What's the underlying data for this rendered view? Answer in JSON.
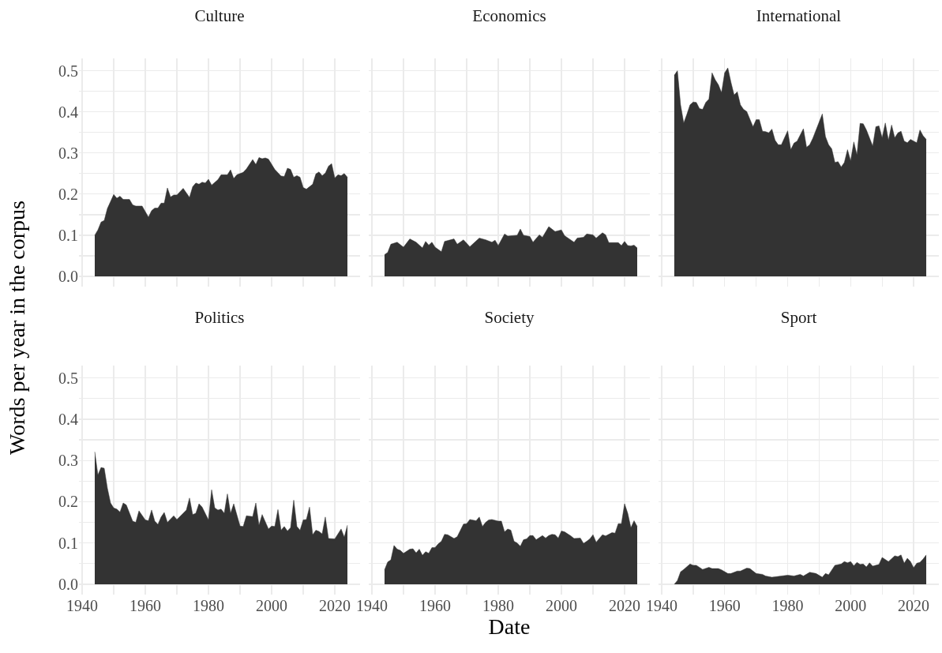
{
  "chart_data": [
    {
      "type": "area",
      "title": "Culture",
      "color": "#333333",
      "tick_labels": "y",
      "grid": true,
      "xlim": [
        1939,
        2028
      ],
      "ylim": [
        -0.025,
        0.53
      ],
      "xticks": [
        {
          "value": 1940,
          "label": null
        },
        {
          "value": 1950,
          "label": null
        },
        {
          "value": 1960,
          "label": null
        },
        {
          "value": 1970,
          "label": null
        },
        {
          "value": 1980,
          "label": null
        },
        {
          "value": 1990,
          "label": null
        },
        {
          "value": 2000,
          "label": null
        },
        {
          "value": 2010,
          "label": null
        },
        {
          "value": 2020,
          "label": null
        }
      ],
      "yticks": [
        {
          "value": 0,
          "label": "0.0"
        },
        {
          "value": 0.05,
          "label": null
        },
        0.1,
        {
          "value": 0.15,
          "label": null
        },
        0.2,
        {
          "value": 0.25,
          "label": null
        },
        0.3,
        {
          "value": 0.35,
          "label": null
        },
        0.4,
        {
          "value": 0.45,
          "label": null
        },
        0.5
      ],
      "x": [
        1944,
        1945,
        1946,
        1947,
        1948,
        1950,
        1951,
        1952,
        1953,
        1955,
        1956,
        1957,
        1959,
        1961,
        1962,
        1963,
        1964,
        1965,
        1966,
        1967,
        1968,
        1969,
        1970,
        1972,
        1974,
        1975,
        1976,
        1977,
        1978,
        1979,
        1980,
        1981,
        1983,
        1984,
        1986,
        1987,
        1988,
        1989,
        1991,
        1992,
        1994,
        1995,
        1996,
        1997,
        1998,
        1999,
        2001,
        2003,
        2004,
        2005,
        2006,
        2007,
        2008,
        2009,
        2010,
        2011,
        2013,
        2014,
        2015,
        2016,
        2017,
        2018,
        2019,
        2020,
        2021,
        2022,
        2023,
        2024
      ],
      "values": [
        0.1,
        0.113,
        0.132,
        0.136,
        0.165,
        0.199,
        0.19,
        0.195,
        0.187,
        0.187,
        0.174,
        0.171,
        0.171,
        0.144,
        0.16,
        0.166,
        0.166,
        0.178,
        0.178,
        0.215,
        0.193,
        0.198,
        0.198,
        0.214,
        0.192,
        0.218,
        0.227,
        0.224,
        0.229,
        0.227,
        0.236,
        0.222,
        0.235,
        0.247,
        0.247,
        0.259,
        0.238,
        0.247,
        0.253,
        0.261,
        0.284,
        0.272,
        0.289,
        0.286,
        0.288,
        0.285,
        0.26,
        0.244,
        0.243,
        0.263,
        0.26,
        0.241,
        0.245,
        0.241,
        0.216,
        0.212,
        0.224,
        0.249,
        0.254,
        0.245,
        0.251,
        0.268,
        0.274,
        0.239,
        0.247,
        0.245,
        0.25,
        0.241
      ]
    },
    {
      "type": "area",
      "title": "Economics",
      "color": "#333333",
      "tick_labels": false,
      "grid": true,
      "xlim": [
        1939,
        2028
      ],
      "ylim": [
        -0.025,
        0.53
      ],
      "xticks": [
        {
          "value": 1940,
          "label": null
        },
        {
          "value": 1950,
          "label": null
        },
        {
          "value": 1960,
          "label": null
        },
        {
          "value": 1970,
          "label": null
        },
        {
          "value": 1980,
          "label": null
        },
        {
          "value": 1990,
          "label": null
        },
        {
          "value": 2000,
          "label": null
        },
        {
          "value": 2010,
          "label": null
        },
        {
          "value": 2020,
          "label": null
        }
      ],
      "yticks": [
        {
          "value": 0,
          "label": null
        },
        {
          "value": 0.05,
          "label": null
        },
        {
          "value": 0.1,
          "label": null
        },
        {
          "value": 0.15,
          "label": null
        },
        {
          "value": 0.2,
          "label": null
        },
        {
          "value": 0.25,
          "label": null
        },
        {
          "value": 0.3,
          "label": null
        },
        {
          "value": 0.35,
          "label": null
        },
        {
          "value": 0.4,
          "label": null
        },
        {
          "value": 0.45,
          "label": null
        },
        {
          "value": 0.5,
          "label": null
        }
      ],
      "x": [
        1944,
        1945,
        1946,
        1948,
        1950,
        1952,
        1954,
        1956,
        1957,
        1958,
        1959,
        1960,
        1962,
        1963,
        1966,
        1967,
        1969,
        1971,
        1972,
        1974,
        1976,
        1978,
        1979,
        1980,
        1982,
        1983,
        1986,
        1987,
        1988,
        1990,
        1991,
        1993,
        1994,
        1996,
        1998,
        2000,
        2001,
        2004,
        2005,
        2007,
        2008,
        2010,
        2011,
        2013,
        2014,
        2015,
        2017,
        2018,
        2019,
        2020,
        2021,
        2022,
        2023,
        2024
      ],
      "values": [
        0.053,
        0.058,
        0.078,
        0.083,
        0.071,
        0.091,
        0.083,
        0.069,
        0.085,
        0.076,
        0.083,
        0.071,
        0.06,
        0.085,
        0.091,
        0.078,
        0.089,
        0.072,
        0.079,
        0.093,
        0.089,
        0.083,
        0.088,
        0.075,
        0.103,
        0.098,
        0.1,
        0.115,
        0.1,
        0.097,
        0.083,
        0.101,
        0.095,
        0.121,
        0.109,
        0.113,
        0.099,
        0.083,
        0.093,
        0.095,
        0.103,
        0.101,
        0.093,
        0.106,
        0.101,
        0.082,
        0.082,
        0.082,
        0.075,
        0.085,
        0.075,
        0.074,
        0.076,
        0.069
      ]
    },
    {
      "type": "area",
      "title": "International",
      "color": "#333333",
      "tick_labels": false,
      "grid": true,
      "xlim": [
        1939,
        2028
      ],
      "ylim": [
        -0.025,
        0.53
      ],
      "xticks": [
        {
          "value": 1940,
          "label": null
        },
        {
          "value": 1950,
          "label": null
        },
        {
          "value": 1960,
          "label": null
        },
        {
          "value": 1970,
          "label": null
        },
        {
          "value": 1980,
          "label": null
        },
        {
          "value": 1990,
          "label": null
        },
        {
          "value": 2000,
          "label": null
        },
        {
          "value": 2010,
          "label": null
        },
        {
          "value": 2020,
          "label": null
        }
      ],
      "yticks": [
        {
          "value": 0,
          "label": null
        },
        {
          "value": 0.05,
          "label": null
        },
        {
          "value": 0.1,
          "label": null
        },
        {
          "value": 0.15,
          "label": null
        },
        {
          "value": 0.2,
          "label": null
        },
        {
          "value": 0.25,
          "label": null
        },
        {
          "value": 0.3,
          "label": null
        },
        {
          "value": 0.35,
          "label": null
        },
        {
          "value": 0.4,
          "label": null
        },
        {
          "value": 0.45,
          "label": null
        },
        {
          "value": 0.5,
          "label": null
        }
      ],
      "x": [
        1944,
        1945,
        1946,
        1947,
        1948,
        1949,
        1950,
        1951,
        1952,
        1953,
        1954,
        1955,
        1956,
        1957,
        1958,
        1959,
        1960,
        1961,
        1962,
        1963,
        1964,
        1965,
        1966,
        1967,
        1969,
        1970,
        1971,
        1972,
        1973,
        1974,
        1975,
        1976,
        1977,
        1978,
        1980,
        1981,
        1982,
        1983,
        1985,
        1986,
        1987,
        1988,
        1991,
        1992,
        1993,
        1994,
        1995,
        1996,
        1997,
        1998,
        1999,
        2000,
        2001,
        2002,
        2003,
        2004,
        2005,
        2007,
        2008,
        2009,
        2010,
        2011,
        2012,
        2013,
        2014,
        2015,
        2016,
        2017,
        2018,
        2019,
        2020,
        2021,
        2022,
        2023,
        2024
      ],
      "values": [
        0.489,
        0.5,
        0.417,
        0.373,
        0.394,
        0.417,
        0.424,
        0.423,
        0.408,
        0.406,
        0.423,
        0.431,
        0.495,
        0.478,
        0.466,
        0.447,
        0.495,
        0.507,
        0.472,
        0.441,
        0.449,
        0.417,
        0.406,
        0.401,
        0.364,
        0.381,
        0.381,
        0.353,
        0.352,
        0.349,
        0.358,
        0.331,
        0.32,
        0.32,
        0.354,
        0.308,
        0.324,
        0.329,
        0.359,
        0.314,
        0.32,
        0.336,
        0.395,
        0.34,
        0.32,
        0.31,
        0.277,
        0.279,
        0.266,
        0.277,
        0.308,
        0.281,
        0.327,
        0.295,
        0.372,
        0.371,
        0.356,
        0.317,
        0.364,
        0.366,
        0.337,
        0.373,
        0.331,
        0.368,
        0.337,
        0.349,
        0.353,
        0.329,
        0.325,
        0.333,
        0.329,
        0.325,
        0.356,
        0.342,
        0.333
      ]
    },
    {
      "type": "area",
      "title": "Politics",
      "ylabel": "Words per year in the corpus",
      "color": "#333333",
      "grid": true,
      "xlim": [
        1939,
        2028
      ],
      "ylim": [
        -0.025,
        0.53
      ],
      "xticks": [
        1940,
        {
          "value": 1950,
          "label": null
        },
        1960,
        {
          "value": 1970,
          "label": null
        },
        1980,
        {
          "value": 1990,
          "label": null
        },
        2000,
        {
          "value": 2010,
          "label": null
        },
        2020
      ],
      "yticks": [
        {
          "value": 0,
          "label": "0.0"
        },
        {
          "value": 0.05,
          "label": null
        },
        0.1,
        {
          "value": 0.15,
          "label": null
        },
        0.2,
        {
          "value": 0.25,
          "label": null
        },
        0.3,
        {
          "value": 0.35,
          "label": null
        },
        0.4,
        {
          "value": 0.45,
          "label": null
        },
        0.5
      ],
      "x": [
        1944,
        1945,
        1946,
        1947,
        1948,
        1949,
        1950,
        1951,
        1952,
        1953,
        1954,
        1956,
        1957,
        1958,
        1960,
        1961,
        1962,
        1963,
        1964,
        1965,
        1966,
        1967,
        1969,
        1970,
        1972,
        1973,
        1974,
        1975,
        1976,
        1977,
        1978,
        1980,
        1981,
        1982,
        1983,
        1984,
        1985,
        1986,
        1987,
        1988,
        1990,
        1991,
        1992,
        1994,
        1995,
        1996,
        1997,
        1999,
        2000,
        2001,
        2002,
        2003,
        2004,
        2005,
        2006,
        2007,
        2008,
        2009,
        2010,
        2011,
        2012,
        2013,
        2014,
        2015,
        2016,
        2017,
        2018,
        2020,
        2022,
        2023,
        2024
      ],
      "values": [
        0.321,
        0.265,
        0.283,
        0.281,
        0.233,
        0.197,
        0.185,
        0.182,
        0.175,
        0.197,
        0.192,
        0.153,
        0.15,
        0.178,
        0.156,
        0.154,
        0.18,
        0.153,
        0.145,
        0.163,
        0.174,
        0.15,
        0.166,
        0.157,
        0.172,
        0.18,
        0.209,
        0.169,
        0.172,
        0.195,
        0.187,
        0.156,
        0.229,
        0.185,
        0.18,
        0.182,
        0.172,
        0.219,
        0.172,
        0.195,
        0.141,
        0.14,
        0.166,
        0.164,
        0.197,
        0.143,
        0.169,
        0.134,
        0.141,
        0.14,
        0.181,
        0.131,
        0.14,
        0.129,
        0.137,
        0.204,
        0.14,
        0.131,
        0.156,
        0.157,
        0.187,
        0.12,
        0.131,
        0.128,
        0.122,
        0.163,
        0.111,
        0.11,
        0.134,
        0.114,
        0.143
      ]
    },
    {
      "type": "area",
      "title": "Society",
      "xlabel": "Date",
      "color": "#333333",
      "tick_labels": "x",
      "grid": true,
      "xlim": [
        1939,
        2028
      ],
      "ylim": [
        -0.025,
        0.53
      ],
      "xticks": [
        1940,
        {
          "value": 1950,
          "label": null
        },
        1960,
        {
          "value": 1970,
          "label": null
        },
        1980,
        {
          "value": 1990,
          "label": null
        },
        2000,
        {
          "value": 2010,
          "label": null
        },
        2020
      ],
      "yticks": [
        {
          "value": 0,
          "label": null
        },
        {
          "value": 0.05,
          "label": null
        },
        {
          "value": 0.1,
          "label": null
        },
        {
          "value": 0.15,
          "label": null
        },
        {
          "value": 0.2,
          "label": null
        },
        {
          "value": 0.25,
          "label": null
        },
        {
          "value": 0.3,
          "label": null
        },
        {
          "value": 0.35,
          "label": null
        },
        {
          "value": 0.4,
          "label": null
        },
        {
          "value": 0.45,
          "label": null
        },
        {
          "value": 0.5,
          "label": null
        }
      ],
      "x": [
        1944,
        1945,
        1946,
        1947,
        1948,
        1949,
        1950,
        1952,
        1953,
        1954,
        1955,
        1956,
        1957,
        1958,
        1959,
        1960,
        1961,
        1962,
        1963,
        1964,
        1966,
        1967,
        1969,
        1970,
        1971,
        1973,
        1974,
        1975,
        1976,
        1977,
        1978,
        1980,
        1981,
        1982,
        1983,
        1984,
        1985,
        1986,
        1987,
        1988,
        1989,
        1990,
        1991,
        1992,
        1994,
        1995,
        1996,
        1997,
        1998,
        1999,
        2000,
        2001,
        2003,
        2004,
        2006,
        2007,
        2008,
        2009,
        2010,
        2011,
        2012,
        2013,
        2014,
        2016,
        2017,
        2018,
        2019,
        2020,
        2021,
        2022,
        2023,
        2024
      ],
      "values": [
        0.035,
        0.054,
        0.059,
        0.094,
        0.085,
        0.082,
        0.075,
        0.085,
        0.086,
        0.076,
        0.085,
        0.07,
        0.079,
        0.075,
        0.089,
        0.089,
        0.098,
        0.104,
        0.121,
        0.12,
        0.111,
        0.115,
        0.146,
        0.147,
        0.157,
        0.154,
        0.163,
        0.14,
        0.15,
        0.156,
        0.157,
        0.153,
        0.153,
        0.127,
        0.134,
        0.131,
        0.104,
        0.1,
        0.092,
        0.108,
        0.11,
        0.118,
        0.118,
        0.108,
        0.118,
        0.112,
        0.118,
        0.121,
        0.12,
        0.112,
        0.129,
        0.127,
        0.117,
        0.111,
        0.112,
        0.099,
        0.104,
        0.11,
        0.12,
        0.102,
        0.111,
        0.12,
        0.117,
        0.125,
        0.124,
        0.147,
        0.147,
        0.195,
        0.172,
        0.137,
        0.154,
        0.14
      ]
    },
    {
      "type": "area",
      "title": "Sport",
      "color": "#333333",
      "tick_labels": "x",
      "grid": true,
      "xlim": [
        1939,
        2028
      ],
      "ylim": [
        -0.025,
        0.53
      ],
      "xticks": [
        1940,
        {
          "value": 1950,
          "label": null
        },
        1960,
        {
          "value": 1970,
          "label": null
        },
        1980,
        {
          "value": 1990,
          "label": null
        },
        2000,
        {
          "value": 2010,
          "label": null
        },
        2020
      ],
      "yticks": [
        {
          "value": 0,
          "label": null
        },
        {
          "value": 0.05,
          "label": null
        },
        {
          "value": 0.1,
          "label": null
        },
        {
          "value": 0.15,
          "label": null
        },
        {
          "value": 0.2,
          "label": null
        },
        {
          "value": 0.25,
          "label": null
        },
        {
          "value": 0.3,
          "label": null
        },
        {
          "value": 0.35,
          "label": null
        },
        {
          "value": 0.4,
          "label": null
        },
        {
          "value": 0.45,
          "label": null
        },
        {
          "value": 0.5,
          "label": null
        }
      ],
      "x": [
        1944,
        1945,
        1946,
        1947,
        1949,
        1950,
        1951,
        1953,
        1955,
        1956,
        1958,
        1959,
        1961,
        1962,
        1964,
        1965,
        1967,
        1968,
        1970,
        1972,
        1973,
        1975,
        1977,
        1980,
        1982,
        1984,
        1985,
        1987,
        1989,
        1991,
        1992,
        1993,
        1995,
        1997,
        1998,
        1999,
        2000,
        2001,
        2002,
        2003,
        2004,
        2005,
        2006,
        2007,
        2009,
        2010,
        2012,
        2014,
        2015,
        2016,
        2017,
        2018,
        2019,
        2020,
        2021,
        2022,
        2023,
        2024
      ],
      "values": [
        0,
        0.009,
        0.03,
        0.036,
        0.049,
        0.046,
        0.046,
        0.036,
        0.041,
        0.038,
        0.038,
        0.035,
        0.026,
        0.026,
        0.032,
        0.032,
        0.039,
        0.038,
        0.026,
        0.024,
        0.02,
        0.017,
        0.019,
        0.022,
        0.02,
        0.024,
        0.02,
        0.029,
        0.026,
        0.017,
        0.026,
        0.023,
        0.046,
        0.049,
        0.055,
        0.052,
        0.055,
        0.045,
        0.053,
        0.048,
        0.049,
        0.042,
        0.052,
        0.044,
        0.048,
        0.065,
        0.055,
        0.069,
        0.067,
        0.071,
        0.051,
        0.063,
        0.055,
        0.04,
        0.051,
        0.053,
        0.061,
        0.071
      ]
    }
  ]
}
